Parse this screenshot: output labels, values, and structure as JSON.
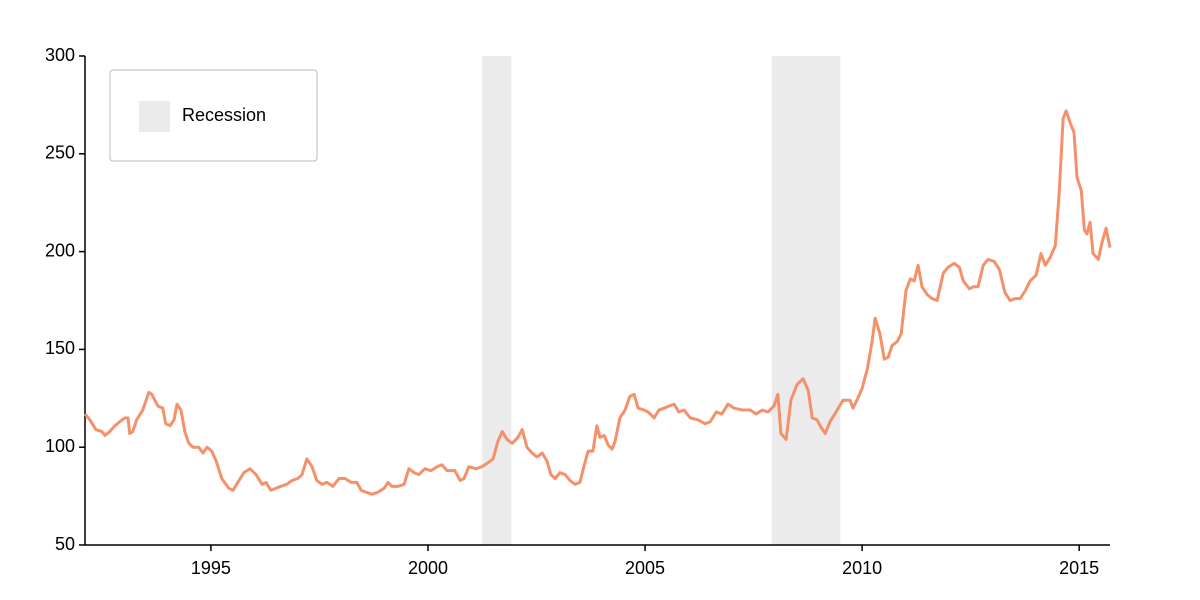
{
  "chart_data": {
    "type": "line",
    "x": [
      1992.1,
      1992.21,
      1992.35,
      1992.49,
      1992.56,
      1992.67,
      1992.79,
      1992.9,
      1993.02,
      1993.09,
      1993.13,
      1993.2,
      1993.29,
      1993.43,
      1993.57,
      1993.64,
      1993.78,
      1993.89,
      1993.96,
      1994.06,
      1994.15,
      1994.22,
      1994.31,
      1994.4,
      1994.49,
      1994.59,
      1994.72,
      1994.82,
      1994.91,
      1995.02,
      1995.12,
      1995.25,
      1995.41,
      1995.51,
      1995.62,
      1995.76,
      1995.9,
      1996.04,
      1996.18,
      1996.27,
      1996.38,
      1996.5,
      1996.61,
      1996.75,
      1996.87,
      1997.0,
      1997.1,
      1997.21,
      1997.33,
      1997.44,
      1997.56,
      1997.67,
      1997.81,
      1997.95,
      1998.09,
      1998.23,
      1998.36,
      1998.46,
      1998.57,
      1998.71,
      1998.85,
      1998.99,
      1999.08,
      1999.17,
      1999.31,
      1999.45,
      1999.56,
      1999.68,
      1999.79,
      1999.93,
      2000.07,
      2000.21,
      2000.32,
      2000.44,
      2000.62,
      2000.74,
      2000.83,
      2000.94,
      2001.11,
      2001.24,
      2001.38,
      2001.5,
      2001.61,
      2001.71,
      2001.82,
      2001.94,
      2002.07,
      2002.17,
      2002.28,
      2002.4,
      2002.51,
      2002.63,
      2002.74,
      2002.83,
      2002.93,
      2003.04,
      2003.16,
      2003.27,
      2003.39,
      2003.5,
      2003.59,
      2003.69,
      2003.8,
      2003.89,
      2003.96,
      2004.06,
      2004.15,
      2004.24,
      2004.31,
      2004.42,
      2004.54,
      2004.65,
      2004.75,
      2004.84,
      2004.98,
      2005.07,
      2005.21,
      2005.32,
      2005.44,
      2005.55,
      2005.67,
      2005.78,
      2005.9,
      2006.04,
      2006.22,
      2006.38,
      2006.5,
      2006.64,
      2006.77,
      2006.91,
      2007.05,
      2007.24,
      2007.42,
      2007.56,
      2007.7,
      2007.83,
      2007.97,
      2008.06,
      2008.13,
      2008.25,
      2008.36,
      2008.5,
      2008.64,
      2008.76,
      2008.85,
      2008.96,
      2009.06,
      2009.15,
      2009.26,
      2009.4,
      2009.56,
      2009.72,
      2009.79,
      2009.88,
      2010.0,
      2010.12,
      2010.23,
      2010.3,
      2010.41,
      2010.51,
      2010.6,
      2010.69,
      2010.81,
      2010.9,
      2011.01,
      2011.11,
      2011.2,
      2011.29,
      2011.38,
      2011.5,
      2011.61,
      2011.73,
      2011.87,
      2011.98,
      2012.12,
      2012.24,
      2012.33,
      2012.47,
      2012.56,
      2012.67,
      2012.79,
      2012.9,
      2013.04,
      2013.16,
      2013.29,
      2013.41,
      2013.53,
      2013.64,
      2013.76,
      2013.87,
      2014.01,
      2014.12,
      2014.22,
      2014.33,
      2014.45,
      2014.54,
      2014.63,
      2014.7,
      2014.79,
      2014.88,
      2014.95,
      2015.05,
      2015.12,
      2015.18,
      2015.25,
      2015.32,
      2015.44,
      2015.53,
      2015.62,
      2015.71
    ],
    "values": [
      117,
      114,
      109,
      108,
      106,
      108,
      111,
      113,
      115,
      115,
      107,
      108,
      114,
      119,
      128,
      127,
      121,
      120,
      112,
      111,
      114,
      122,
      119,
      108,
      102,
      100,
      100,
      97,
      100,
      98,
      93,
      84,
      79,
      78,
      82,
      87,
      89,
      86,
      81,
      82,
      78,
      79,
      80,
      81,
      83,
      84,
      86,
      94,
      90,
      83,
      81,
      82,
      80,
      84,
      84,
      82,
      82,
      78,
      77,
      76,
      77,
      79,
      82,
      80,
      80,
      81,
      89,
      87,
      86,
      89,
      88,
      90,
      91,
      88,
      88,
      83,
      84,
      90,
      89,
      90,
      92,
      94,
      103,
      108,
      104,
      102,
      105,
      109,
      100,
      97,
      95,
      97,
      93,
      86,
      84,
      87,
      86,
      83,
      81,
      82,
      90,
      98,
      98,
      111,
      105,
      106,
      101,
      99,
      103,
      115,
      119,
      126,
      127,
      120,
      119,
      118,
      115,
      119,
      120,
      121,
      122,
      118,
      119,
      115,
      114,
      112,
      113,
      118,
      117,
      122,
      120,
      119,
      119,
      117,
      119,
      118,
      121,
      127,
      107,
      104,
      124,
      132,
      135,
      129,
      115,
      114,
      110,
      107,
      113,
      118,
      124,
      124,
      120,
      124,
      130,
      140,
      154,
      166,
      158,
      145,
      146,
      152,
      154,
      158,
      180,
      186,
      185,
      193,
      182,
      178,
      176,
      175,
      189,
      192,
      194,
      192,
      185,
      181,
      182,
      182,
      193,
      196,
      195,
      191,
      179,
      175,
      176,
      176,
      180,
      185,
      188,
      199,
      193,
      197,
      203,
      230,
      268,
      272,
      266,
      261,
      238,
      231,
      211,
      209,
      215,
      199,
      196,
      205,
      212,
      202
    ],
    "color": "#f4916b",
    "shaded_regions": {
      "label": "Recession",
      "color": "#ebebeb",
      "ranges": [
        [
          2001.25,
          2001.92
        ],
        [
          2007.92,
          2009.5
        ]
      ]
    },
    "xlim": [
      1992.1,
      2015.71
    ],
    "xticks": [
      1995,
      2000,
      2005,
      2010,
      2015
    ],
    "ylim": [
      50,
      300
    ],
    "yticks": [
      50,
      100,
      150,
      200,
      250,
      300
    ],
    "grid": false,
    "legend": "top-left"
  }
}
